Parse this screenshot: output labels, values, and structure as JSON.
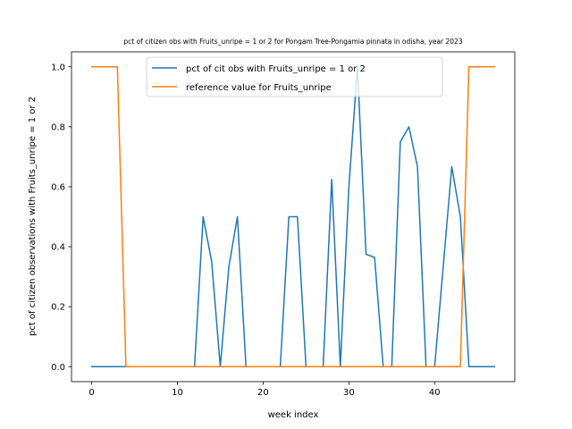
{
  "chart_data": {
    "type": "line",
    "title": "pct of citizen obs with Fruits_unripe = 1 or 2 for Pongam Tree-Pongamia pinnata in odisha, year 2023",
    "xlabel": "week index",
    "ylabel": "pct of citizen observations with Fruits_unripe = 1 or 2",
    "xlim": [
      -2.35,
      49.35
    ],
    "ylim": [
      -0.05,
      1.05
    ],
    "xticks": [
      0,
      10,
      20,
      30,
      40
    ],
    "xtick_labels": [
      "0",
      "10",
      "20",
      "30",
      "40"
    ],
    "yticks": [
      0.0,
      0.2,
      0.4,
      0.6,
      0.8,
      1.0
    ],
    "ytick_labels": [
      "0.0",
      "0.2",
      "0.4",
      "0.6",
      "0.8",
      "1.0"
    ],
    "grid": false,
    "legend_position": "top-center",
    "series": [
      {
        "name": "pct of cit obs with Fruits_unripe = 1 or 2",
        "color": "#1f77b4",
        "x": [
          0,
          1,
          2,
          3,
          4,
          5,
          6,
          7,
          8,
          9,
          10,
          11,
          12,
          13,
          14,
          15,
          16,
          17,
          18,
          19,
          20,
          21,
          22,
          23,
          24,
          25,
          26,
          27,
          28,
          29,
          30,
          31,
          32,
          33,
          34,
          35,
          36,
          37,
          38,
          39,
          40,
          41,
          42,
          43,
          44,
          45,
          46,
          47
        ],
        "y": [
          0,
          0,
          0,
          0,
          0,
          0,
          0,
          0,
          0,
          0,
          0,
          0,
          0,
          0.5,
          0.35,
          0,
          0.333,
          0.5,
          0,
          0,
          0,
          0,
          0,
          0.5,
          0.5,
          0,
          0,
          0,
          0.625,
          0,
          0.6,
          1.0,
          0.375,
          0.364,
          0,
          0,
          0.75,
          0.8,
          0.667,
          0,
          0,
          0.333,
          0.667,
          0.5,
          0,
          0,
          0,
          0
        ]
      },
      {
        "name": "reference value for Fruits_unripe",
        "color": "#ff7f0e",
        "x": [
          0,
          1,
          2,
          3,
          4,
          5,
          6,
          7,
          8,
          9,
          10,
          11,
          12,
          13,
          14,
          15,
          16,
          17,
          18,
          19,
          20,
          21,
          22,
          23,
          24,
          25,
          26,
          27,
          28,
          29,
          30,
          31,
          32,
          33,
          34,
          35,
          36,
          37,
          38,
          39,
          40,
          41,
          42,
          43,
          44,
          45,
          46,
          47
        ],
        "y": [
          1,
          1,
          1,
          1,
          0,
          0,
          0,
          0,
          0,
          0,
          0,
          0,
          0,
          0,
          0,
          0,
          0,
          0,
          0,
          0,
          0,
          0,
          0,
          0,
          0,
          0,
          0,
          0,
          0,
          0,
          0,
          0,
          0,
          0,
          0,
          0,
          0,
          0,
          0,
          0,
          0,
          0,
          0,
          0,
          1,
          1,
          1,
          1
        ]
      }
    ]
  }
}
